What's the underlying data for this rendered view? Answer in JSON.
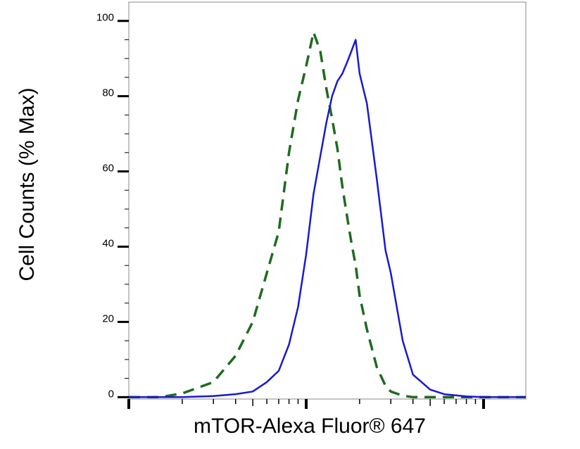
{
  "chart_data": {
    "type": "line",
    "xlabel": "mTOR-Alexa Fluor® 647",
    "ylabel": "Cell Counts (% Max)",
    "xscale": "log",
    "xlim": [
      1,
      173
    ],
    "xticks": [
      1,
      10,
      100
    ],
    "ylim": [
      -0.5,
      105
    ],
    "yticks": [
      0,
      20,
      40,
      60,
      80,
      100
    ],
    "grid": false,
    "x": [
      1,
      1.5,
      2,
      3,
      4,
      5,
      6,
      7,
      8,
      9,
      10,
      11,
      12,
      13,
      14,
      15,
      16,
      17,
      18,
      19,
      20,
      22,
      25,
      28,
      30,
      35,
      40,
      50,
      60,
      80,
      100,
      150,
      173
    ],
    "series": [
      {
        "color": "#1f6b1f",
        "dashed": true,
        "values": [
          0,
          0,
          1,
          4,
          11,
          20,
          33,
          44,
          65,
          79,
          88,
          97,
          92,
          82,
          74,
          66,
          56,
          48,
          41,
          35,
          27,
          18,
          8,
          3,
          1.5,
          0.4,
          0,
          0,
          0,
          0,
          0,
          0,
          0
        ]
      },
      {
        "color": "#1a1acc",
        "dashed": false,
        "values": [
          0,
          0,
          0,
          0.3,
          0.8,
          1.5,
          4,
          7,
          14,
          24,
          38,
          54,
          64,
          73,
          80,
          84,
          86,
          89,
          92,
          95,
          86,
          78,
          58,
          39,
          33,
          15,
          6,
          2,
          0.8,
          0.2,
          0,
          0,
          0
        ]
      }
    ]
  }
}
